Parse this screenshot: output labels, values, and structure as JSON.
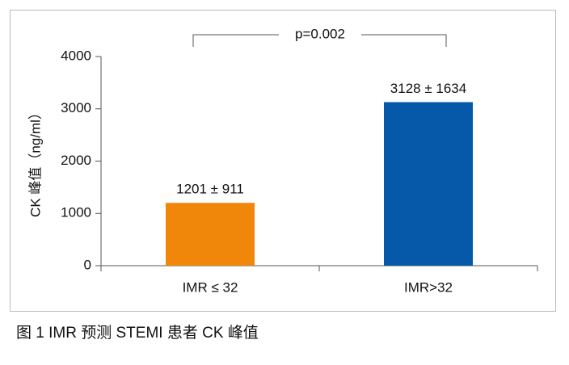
{
  "chart_data": {
    "type": "bar",
    "categories": [
      "IMR ≤ 32",
      "IMR>32"
    ],
    "series": [
      {
        "name": null,
        "colors": [
          "#f0870a",
          "#0659a8"
        ],
        "values": [
          1201,
          3128
        ],
        "value_labels": [
          "1201 ± 911",
          "3128 ± 1634"
        ]
      }
    ],
    "y_label": "CK 峰值（ng/ml）",
    "ylim": [
      0,
      4000
    ],
    "yticks": [
      0,
      1000,
      2000,
      3000,
      4000
    ],
    "annotation": "p=0.002",
    "caption": "图 1  IMR 预测 STEMI 患者 CK 峰值"
  }
}
